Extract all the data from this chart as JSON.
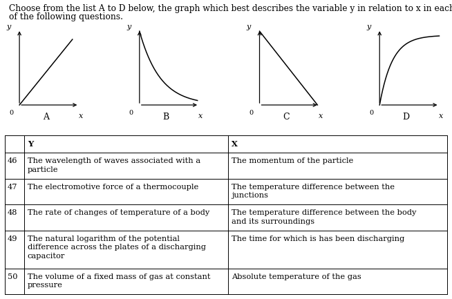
{
  "title_line1": "Choose from the list A to D below, the graph which best describes the variable y in relation to x in each",
  "title_line2": "of the following questions.",
  "graph_labels": [
    "A",
    "B",
    "C",
    "D"
  ],
  "table_header_col1": "Y",
  "table_header_col2": "X",
  "table_rows": [
    [
      "46",
      "The wavelength of waves associated with a\nparticle",
      "The momentum of the particle"
    ],
    [
      "47",
      "The electromotive force of a thermocouple",
      "The temperature difference between the\njunctions"
    ],
    [
      "48",
      "The rate of changes of temperature of a body",
      "The temperature difference between the body\nand its surroundings"
    ],
    [
      "49",
      "The natural logarithm of the potential\ndifference across the plates of a discharging\ncapacitor",
      "The time for which is has been discharging"
    ],
    [
      "50",
      "The volume of a fixed mass of gas at constant\npressure",
      "Absolute temperature of the gas"
    ]
  ],
  "bg_color": "#ffffff",
  "text_color": "#000000",
  "fontsize_title": 8.8,
  "fontsize_table": 8.2,
  "fontsize_graph_label": 9,
  "fontsize_axis_label": 8
}
